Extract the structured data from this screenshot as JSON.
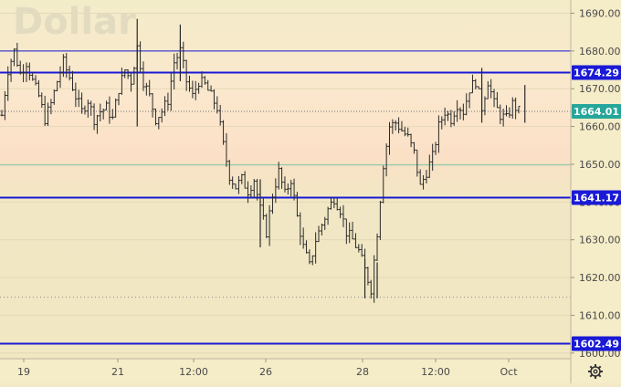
{
  "chart_data": {
    "type": "candlestick",
    "title": "Dollar",
    "y_axis": {
      "ticks": [
        1690,
        1680,
        1670,
        1660,
        1650,
        1640,
        1630,
        1620,
        1610,
        1600
      ],
      "tick_labels": [
        "1690.00",
        "1680.00",
        "1670.00",
        "1660.00",
        "1650.00",
        "1640.00",
        "1630.00",
        "1620.00",
        "1610.00",
        "1600.00"
      ],
      "range": [
        1598.5,
        1693.5
      ],
      "position": "right"
    },
    "x_axis": {
      "tick_labels": [
        "19",
        "21",
        "12:00",
        "26",
        "28",
        "12:00",
        "Oct"
      ]
    },
    "current_price": {
      "value": 1664.01,
      "label": "1664.01"
    },
    "horizontal_levels": [
      {
        "value": 1674.29,
        "label": "1674.29",
        "color": "#1a1ad6"
      },
      {
        "value": 1641.17,
        "label": "1641.17",
        "color": "#1a1ad6"
      },
      {
        "value": 1602.49,
        "label": "1602.49",
        "color": "#1a1ad6"
      },
      {
        "value": 1680.0,
        "label": "",
        "color": "#1a1ad6"
      },
      {
        "value": 1649.8,
        "label": "",
        "color": "#7fc9a8"
      },
      {
        "value": 1614.8,
        "label": "",
        "color": "#8a8a8a",
        "style": "dotted"
      }
    ],
    "price_path": [
      [
        0,
        1663
      ],
      [
        2,
        1675
      ],
      [
        4,
        1680
      ],
      [
        6,
        1674
      ],
      [
        8,
        1677
      ],
      [
        10,
        1672
      ],
      [
        12,
        1668
      ],
      [
        14,
        1662
      ],
      [
        16,
        1666
      ],
      [
        18,
        1672
      ],
      [
        20,
        1677
      ],
      [
        22,
        1673
      ],
      [
        24,
        1668
      ],
      [
        26,
        1664
      ],
      [
        28,
        1667
      ],
      [
        30,
        1662
      ],
      [
        32,
        1664
      ],
      [
        34,
        1665
      ],
      [
        36,
        1662
      ],
      [
        38,
        1670
      ],
      [
        40,
        1675
      ],
      [
        42,
        1672
      ],
      [
        44,
        1681
      ],
      [
        46,
        1672
      ],
      [
        48,
        1668
      ],
      [
        50,
        1662
      ],
      [
        52,
        1664
      ],
      [
        54,
        1667
      ],
      [
        56,
        1677
      ],
      [
        58,
        1680
      ],
      [
        60,
        1672
      ],
      [
        62,
        1668
      ],
      [
        64,
        1672
      ],
      [
        66,
        1671
      ],
      [
        68,
        1668
      ],
      [
        70,
        1665
      ],
      [
        72,
        1655
      ],
      [
        74,
        1647
      ],
      [
        76,
        1644
      ],
      [
        78,
        1646
      ],
      [
        80,
        1643
      ],
      [
        82,
        1646
      ],
      [
        84,
        1638
      ],
      [
        86,
        1632
      ],
      [
        88,
        1642
      ],
      [
        90,
        1648
      ],
      [
        92,
        1642
      ],
      [
        94,
        1646
      ],
      [
        96,
        1636
      ],
      [
        98,
        1628
      ],
      [
        100,
        1623
      ],
      [
        102,
        1630
      ],
      [
        104,
        1634
      ],
      [
        106,
        1638
      ],
      [
        108,
        1641
      ],
      [
        110,
        1638
      ],
      [
        112,
        1632
      ],
      [
        114,
        1630
      ],
      [
        116,
        1627
      ],
      [
        118,
        1622
      ],
      [
        120,
        1617
      ],
      [
        122,
        1632
      ],
      [
        124,
        1650
      ],
      [
        126,
        1660
      ],
      [
        128,
        1661
      ],
      [
        130,
        1659
      ],
      [
        132,
        1657
      ],
      [
        134,
        1653
      ],
      [
        136,
        1644
      ],
      [
        138,
        1648
      ],
      [
        140,
        1652
      ],
      [
        142,
        1660
      ],
      [
        144,
        1664
      ],
      [
        146,
        1662
      ],
      [
        148,
        1666
      ],
      [
        150,
        1664
      ],
      [
        152,
        1670
      ],
      [
        154,
        1672
      ],
      [
        156,
        1665
      ],
      [
        158,
        1672
      ],
      [
        160,
        1666
      ],
      [
        162,
        1663
      ],
      [
        164,
        1662
      ],
      [
        166,
        1666
      ],
      [
        168,
        1664
      ]
    ],
    "price_path_x_range": [
      0,
      168
    ],
    "grid": true,
    "legend": "none"
  }
}
